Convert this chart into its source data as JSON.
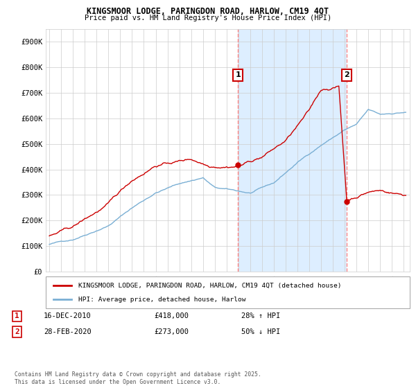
{
  "title1": "KINGSMOOR LODGE, PARINGDON ROAD, HARLOW, CM19 4QT",
  "title2": "Price paid vs. HM Land Registry's House Price Index (HPI)",
  "ylim": [
    0,
    950000
  ],
  "yticks": [
    0,
    100000,
    200000,
    300000,
    400000,
    500000,
    600000,
    700000,
    800000,
    900000
  ],
  "ytick_labels": [
    "£0",
    "£100K",
    "£200K",
    "£300K",
    "£400K",
    "£500K",
    "£600K",
    "£700K",
    "£800K",
    "£900K"
  ],
  "xlim_start": 1994.7,
  "xlim_end": 2025.5,
  "xticks": [
    1995,
    1996,
    1997,
    1998,
    1999,
    2000,
    2001,
    2002,
    2003,
    2004,
    2005,
    2006,
    2007,
    2008,
    2009,
    2010,
    2011,
    2012,
    2013,
    2014,
    2015,
    2016,
    2017,
    2018,
    2019,
    2020,
    2021,
    2022,
    2023,
    2024,
    2025
  ],
  "plot_bg_color": "#ffffff",
  "grid_color": "#cccccc",
  "red_color": "#cc0000",
  "blue_color": "#7aafd4",
  "vline_color": "#ff8888",
  "shade_color": "#ddeeff",
  "marker1_x": 2010.96,
  "marker1_price": 418000,
  "marker2_x": 2020.16,
  "marker2_price": 273000,
  "legend_label_red": "KINGSMOOR LODGE, PARINGDON ROAD, HARLOW, CM19 4QT (detached house)",
  "legend_label_blue": "HPI: Average price, detached house, Harlow",
  "annotation1_date": "16-DEC-2010",
  "annotation1_price": "£418,000",
  "annotation1_hpi": "28% ↑ HPI",
  "annotation2_date": "28-FEB-2020",
  "annotation2_price": "£273,000",
  "annotation2_hpi": "50% ↓ HPI",
  "footer": "Contains HM Land Registry data © Crown copyright and database right 2025.\nThis data is licensed under the Open Government Licence v3.0."
}
